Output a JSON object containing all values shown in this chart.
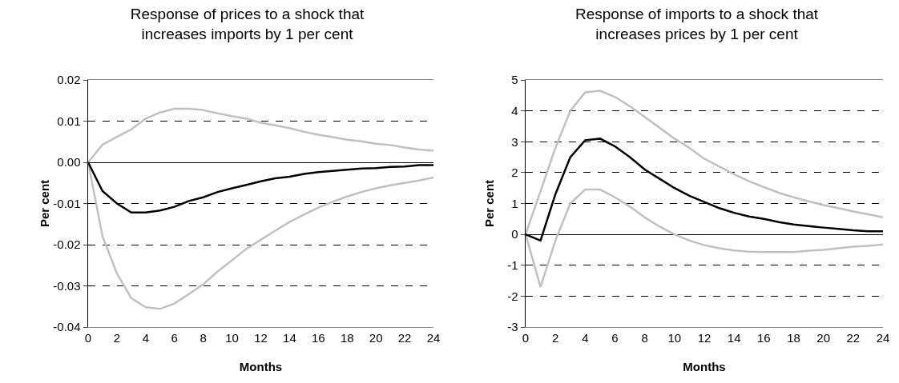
{
  "chart_data": [
    {
      "type": "line",
      "title": "Response of prices to a shock that increases imports by 1 per cent",
      "xlabel": "Months",
      "ylabel": "Per cent",
      "x": [
        0,
        1,
        2,
        3,
        4,
        5,
        6,
        7,
        8,
        9,
        10,
        11,
        12,
        13,
        14,
        15,
        16,
        17,
        18,
        19,
        20,
        21,
        22,
        23,
        24
      ],
      "series": [
        {
          "color": "#c0c0c0",
          "values": [
            0,
            0.0043,
            0.0062,
            0.008,
            0.0106,
            0.0121,
            0.013,
            0.013,
            0.0127,
            0.0119,
            0.0112,
            0.0106,
            0.0096,
            0.009,
            0.0083,
            0.0074,
            0.0067,
            0.0061,
            0.0055,
            0.0051,
            0.0045,
            0.0042,
            0.0036,
            0.0031,
            0.0028
          ]
        },
        {
          "color": "#c0c0c0",
          "values": [
            0,
            -0.018,
            -0.027,
            -0.033,
            -0.0352,
            -0.0356,
            -0.0343,
            -0.032,
            -0.0296,
            -0.0265,
            -0.0238,
            -0.021,
            -0.0188,
            -0.0166,
            -0.0145,
            -0.0127,
            -0.011,
            -0.0096,
            -0.0083,
            -0.0072,
            -0.0063,
            -0.0056,
            -0.005,
            -0.0044,
            -0.0037
          ]
        },
        {
          "color": "#000000",
          "values": [
            0,
            -0.007,
            -0.01,
            -0.0122,
            -0.0122,
            -0.0117,
            -0.0108,
            -0.0094,
            -0.0085,
            -0.0072,
            -0.0063,
            -0.0055,
            -0.0046,
            -0.0039,
            -0.0035,
            -0.0028,
            -0.0024,
            -0.0021,
            -0.0018,
            -0.0015,
            -0.0014,
            -0.0011,
            -0.001,
            -0.0007,
            -0.0007
          ]
        }
      ],
      "xlim": [
        0,
        24
      ],
      "xticks": [
        0,
        2,
        4,
        6,
        8,
        10,
        12,
        14,
        16,
        18,
        20,
        22,
        24
      ],
      "ylim": [
        -0.04,
        0.02
      ],
      "yticks": [
        {
          "value": -0.04,
          "label": "-0.04"
        },
        {
          "value": -0.03,
          "label": "-0.03"
        },
        {
          "value": -0.02,
          "label": "-0.02"
        },
        {
          "value": -0.01,
          "label": "-0.01"
        },
        {
          "value": 0,
          "label": "0.00"
        },
        {
          "value": 0.01,
          "label": "0.01"
        },
        {
          "value": 0.02,
          "label": "0.02"
        }
      ],
      "grid": "y",
      "marker": "none",
      "line_style": "solid"
    },
    {
      "type": "line",
      "title": "Response of imports to a shock that increases prices by 1 per cent",
      "xlabel": "Months",
      "ylabel": "Per cent",
      "x": [
        0,
        1,
        2,
        3,
        4,
        5,
        6,
        7,
        8,
        9,
        10,
        11,
        12,
        13,
        14,
        15,
        16,
        17,
        18,
        19,
        20,
        21,
        22,
        23,
        24
      ],
      "series": [
        {
          "color": "#c0c0c0",
          "values": [
            0,
            1.4,
            2.8,
            4.0,
            4.6,
            4.65,
            4.45,
            4.15,
            3.8,
            3.45,
            3.1,
            2.8,
            2.45,
            2.2,
            1.95,
            1.72,
            1.53,
            1.35,
            1.2,
            1.07,
            0.95,
            0.85,
            0.74,
            0.65,
            0.55
          ]
        },
        {
          "color": "#c0c0c0",
          "values": [
            0,
            -1.7,
            -0.2,
            1.0,
            1.45,
            1.45,
            1.2,
            0.9,
            0.55,
            0.25,
            0,
            -0.2,
            -0.35,
            -0.45,
            -0.52,
            -0.56,
            -0.57,
            -0.57,
            -0.57,
            -0.53,
            -0.5,
            -0.45,
            -0.4,
            -0.37,
            -0.33
          ]
        },
        {
          "color": "#000000",
          "values": [
            0,
            -0.2,
            1.3,
            2.5,
            3.05,
            3.1,
            2.85,
            2.5,
            2.1,
            1.8,
            1.5,
            1.25,
            1.05,
            0.85,
            0.7,
            0.58,
            0.5,
            0.4,
            0.32,
            0.27,
            0.22,
            0.18,
            0.13,
            0.1,
            0.1
          ]
        }
      ],
      "xlim": [
        0,
        24
      ],
      "xticks": [
        0,
        2,
        4,
        6,
        8,
        10,
        12,
        14,
        16,
        18,
        20,
        22,
        24
      ],
      "ylim": [
        -3,
        5
      ],
      "yticks": [
        -3,
        -2,
        -1,
        0,
        1,
        2,
        3,
        4,
        5
      ],
      "grid": "y",
      "marker": "none",
      "line_style": "solid"
    }
  ]
}
